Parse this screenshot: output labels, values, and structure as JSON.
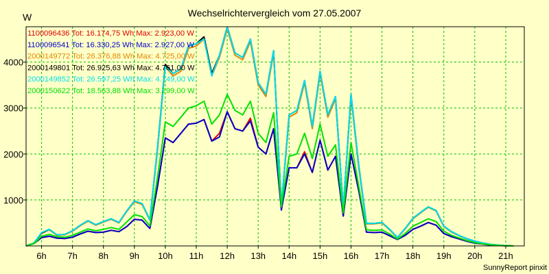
{
  "chart_data": {
    "type": "line",
    "title": "Wechselrichtervergleich vom 27.05.2007",
    "ylabel": "W",
    "xlabel": "",
    "footer": "SunnyReport pinxit",
    "x": [
      5.5,
      5.75,
      6,
      6.25,
      6.5,
      6.75,
      7,
      7.25,
      7.5,
      7.75,
      8,
      8.25,
      8.5,
      8.75,
      9,
      9.25,
      9.5,
      9.75,
      10,
      10.25,
      10.5,
      10.75,
      11,
      11.25,
      11.5,
      11.75,
      12,
      12.25,
      12.5,
      12.75,
      13,
      13.25,
      13.5,
      13.75,
      14,
      14.25,
      14.5,
      14.75,
      15,
      15.25,
      15.5,
      15.75,
      16,
      16.25,
      16.5,
      16.75,
      17,
      17.25,
      17.5,
      17.75,
      18,
      18.25,
      18.5,
      18.75,
      19,
      19.25,
      19.5,
      19.75,
      20,
      20.25,
      20.5,
      20.75,
      21,
      21.25
    ],
    "xticks": [
      {
        "v": 6,
        "label": "6h"
      },
      {
        "v": 7,
        "label": "7h"
      },
      {
        "v": 8,
        "label": "8h"
      },
      {
        "v": 9,
        "label": "9h"
      },
      {
        "v": 10,
        "label": "10h"
      },
      {
        "v": 11,
        "label": "11h"
      },
      {
        "v": 12,
        "label": "12h"
      },
      {
        "v": 13,
        "label": "13h"
      },
      {
        "v": 14,
        "label": "14h"
      },
      {
        "v": 15,
        "label": "15h"
      },
      {
        "v": 16,
        "label": "16h"
      },
      {
        "v": 17,
        "label": "17h"
      },
      {
        "v": 18,
        "label": "18h"
      },
      {
        "v": 19,
        "label": "19h"
      },
      {
        "v": 20,
        "label": "20h"
      },
      {
        "v": 21,
        "label": "21h"
      }
    ],
    "xlim": [
      5.5,
      21.6
    ],
    "yticks": [
      {
        "v": 1000,
        "label": "1000"
      },
      {
        "v": 2000,
        "label": "2000"
      },
      {
        "v": 3000,
        "label": "3000"
      },
      {
        "v": 4000,
        "label": "4000"
      }
    ],
    "ylim": [
      0,
      4770
    ],
    "grid": true,
    "legend_placement": "top-left",
    "series": [
      {
        "name": "1100096436",
        "label": "1100096436 Tot: 16.174,75 Wh Max: 2.923,00 W",
        "color": "#e00000",
        "values": [
          0,
          50,
          180,
          210,
          170,
          160,
          190,
          260,
          320,
          290,
          300,
          340,
          310,
          420,
          580,
          560,
          380,
          1300,
          2350,
          2250,
          2450,
          2650,
          2670,
          2750,
          2280,
          2450,
          2920,
          2550,
          2500,
          2780,
          2150,
          2000,
          2550,
          820,
          1700,
          1700,
          2050,
          1600,
          2300,
          1650,
          1950,
          650,
          2000,
          1200,
          300,
          290,
          300,
          220,
          140,
          230,
          360,
          430,
          510,
          450,
          270,
          200,
          150,
          100,
          60,
          40,
          20,
          10,
          5,
          0
        ]
      },
      {
        "name": "1100096541",
        "label": "1100096541 Tot: 16.330,25 Wh Max: 2.927,00 W",
        "color": "#0000c8",
        "values": [
          0,
          50,
          180,
          210,
          170,
          160,
          190,
          260,
          320,
          290,
          300,
          340,
          310,
          420,
          580,
          560,
          380,
          1300,
          2350,
          2250,
          2450,
          2650,
          2670,
          2750,
          2280,
          2370,
          2920,
          2550,
          2500,
          2720,
          2150,
          2000,
          2550,
          780,
          1700,
          1700,
          2000,
          1600,
          2300,
          1650,
          1950,
          650,
          2000,
          1200,
          300,
          290,
          300,
          220,
          140,
          230,
          360,
          430,
          510,
          450,
          270,
          200,
          150,
          100,
          60,
          40,
          20,
          10,
          5,
          0
        ]
      },
      {
        "name": "2000149772",
        "label": "2000149772 Tot: 26.376,88 Wh Max: 4.725,00 W",
        "color": "#e08800",
        "values": [
          0,
          60,
          270,
          350,
          230,
          240,
          320,
          440,
          540,
          450,
          520,
          580,
          500,
          750,
          960,
          900,
          560,
          2100,
          3900,
          3700,
          3800,
          4300,
          4350,
          4500,
          3700,
          4100,
          4720,
          4150,
          4050,
          4450,
          3500,
          3250,
          4200,
          850,
          2800,
          2900,
          3550,
          2550,
          3750,
          2800,
          3200,
          800,
          3250,
          1700,
          480,
          480,
          500,
          350,
          180,
          370,
          590,
          720,
          840,
          760,
          420,
          300,
          220,
          150,
          100,
          60,
          30,
          15,
          5,
          0
        ]
      },
      {
        "name": "2000149801",
        "label": "2000149801 Tot: 26.925,63 Wh Max: 4.761,00 W",
        "color": "#000000",
        "values": [
          0,
          60,
          280,
          360,
          240,
          250,
          330,
          450,
          550,
          460,
          530,
          590,
          510,
          760,
          980,
          920,
          570,
          2150,
          3950,
          3750,
          3850,
          4350,
          4400,
          4550,
          3750,
          4150,
          4761,
          4200,
          4100,
          4500,
          3550,
          3300,
          4250,
          870,
          2850,
          2950,
          3600,
          2600,
          3800,
          2850,
          3250,
          820,
          3300,
          1750,
          490,
          490,
          510,
          360,
          185,
          380,
          600,
          730,
          850,
          770,
          430,
          310,
          225,
          155,
          105,
          65,
          35,
          18,
          6,
          0
        ]
      },
      {
        "name": "2000149852",
        "label": "2000149852 Tot: 26.597,25 Wh Max: 4.749,00 W",
        "color": "#00e0f0",
        "values": [
          0,
          60,
          290,
          360,
          240,
          250,
          330,
          450,
          550,
          460,
          530,
          590,
          510,
          760,
          980,
          920,
          570,
          2150,
          3900,
          3750,
          3850,
          4350,
          4400,
          4500,
          3700,
          4150,
          4749,
          4200,
          4100,
          4500,
          3550,
          3300,
          4250,
          860,
          2850,
          2950,
          3600,
          2600,
          3800,
          2850,
          3250,
          820,
          3300,
          1750,
          490,
          490,
          510,
          360,
          185,
          380,
          600,
          730,
          850,
          770,
          430,
          310,
          225,
          155,
          105,
          65,
          35,
          18,
          6,
          0
        ]
      },
      {
        "name": "2000150622",
        "label": "2000150622 Tot: 18.563,88 Wh Max: 3.299,00 W",
        "color": "#00e000",
        "values": [
          0,
          50,
          210,
          250,
          200,
          190,
          230,
          300,
          370,
          330,
          360,
          400,
          360,
          520,
          680,
          640,
          440,
          1500,
          2700,
          2600,
          2800,
          3000,
          3050,
          3150,
          2650,
          2850,
          3299,
          2950,
          2850,
          3150,
          2450,
          2250,
          2900,
          860,
          1950,
          2000,
          2450,
          1900,
          2650,
          1950,
          2200,
          720,
          2250,
          1300,
          350,
          340,
          350,
          260,
          150,
          270,
          430,
          510,
          590,
          530,
          320,
          230,
          170,
          115,
          70,
          45,
          25,
          12,
          5,
          0
        ]
      }
    ]
  }
}
